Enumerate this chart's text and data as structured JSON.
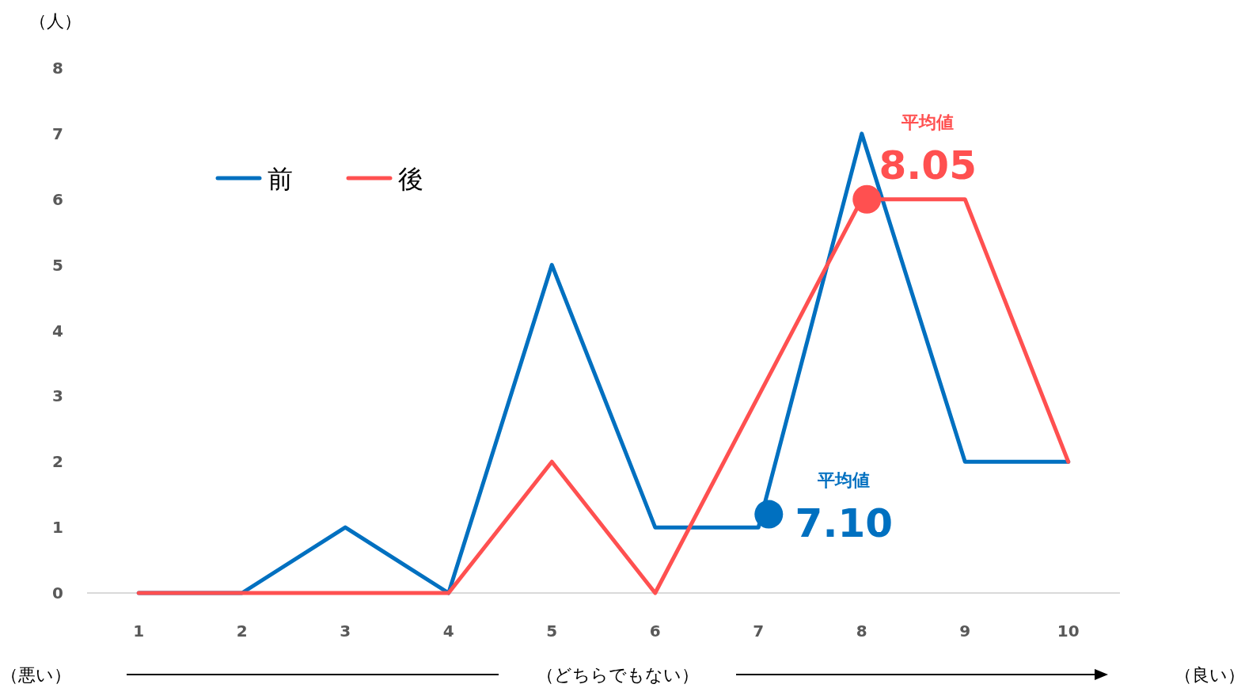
{
  "chart_data": {
    "type": "line",
    "ylabel": "（人）",
    "x": [
      1,
      2,
      3,
      4,
      5,
      6,
      7,
      8,
      9,
      10
    ],
    "xlim": [
      0.5,
      10.5
    ],
    "xticks": [
      1,
      2,
      3,
      4,
      5,
      6,
      7,
      8,
      9,
      10
    ],
    "ylim": [
      0,
      8
    ],
    "yticks": [
      0,
      1,
      2,
      3,
      4,
      5,
      6,
      7,
      8
    ],
    "legend": "top left",
    "grid": false,
    "marker": "none",
    "line_style": "solid",
    "series": [
      {
        "name": "前",
        "color": "#0070c0",
        "values": [
          0,
          0,
          1,
          0,
          5,
          1,
          1,
          7,
          2,
          2
        ]
      },
      {
        "name": "後",
        "color": "#ff5050",
        "values": [
          0,
          0,
          0,
          0,
          2,
          0,
          3,
          6,
          6,
          2
        ]
      },
      {
        "type": "scatter",
        "marker": "circle",
        "color": "#0070c0",
        "x": [
          7.1
        ],
        "values": [
          1.2
        ]
      },
      {
        "type": "scatter",
        "marker": "circle",
        "color": "#ff5050",
        "x": [
          8.05
        ],
        "values": [
          6
        ]
      }
    ],
    "annotations": [
      "平均値",
      {
        "text": "7.10",
        "x": 7.1,
        "y": 1.2
      },
      "平均値",
      {
        "text": "8.05",
        "x": 8.05,
        "y": 6
      },
      "（悪い）",
      "（どちらでもない）",
      "（良い）"
    ]
  }
}
